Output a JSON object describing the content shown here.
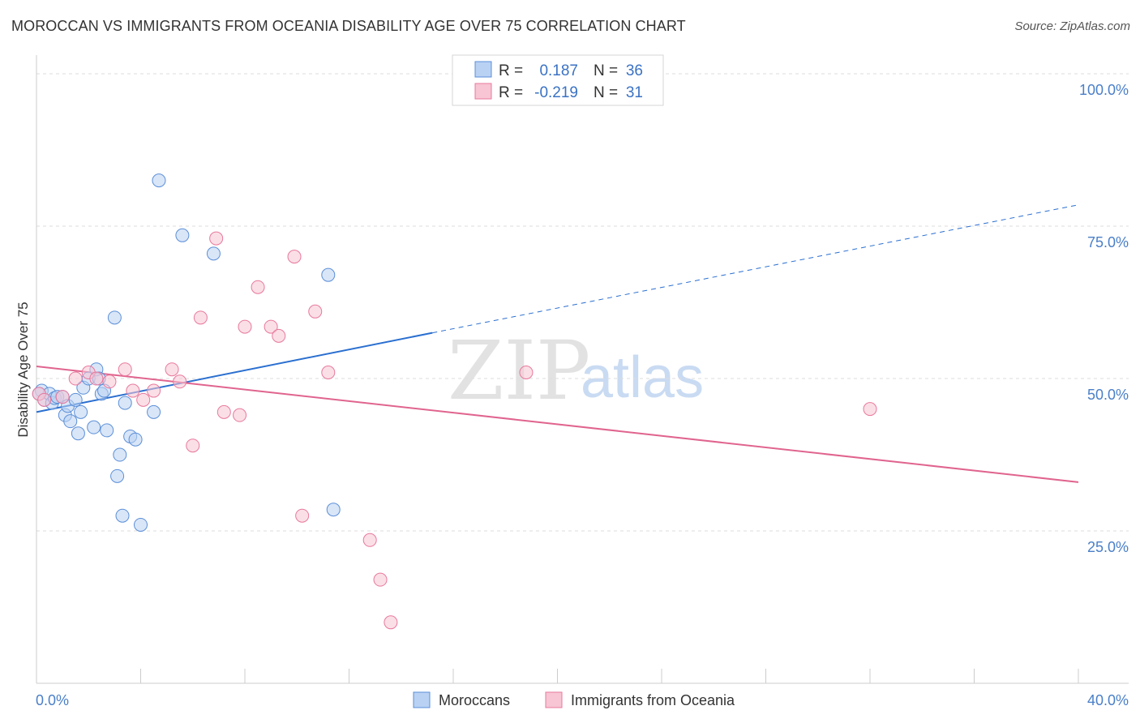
{
  "title": "MOROCCAN VS IMMIGRANTS FROM OCEANIA DISABILITY AGE OVER 75 CORRELATION CHART",
  "source": "Source: ZipAtlas.com",
  "watermark": {
    "zip": "ZIP",
    "atlas": "atlas"
  },
  "colors": {
    "blue": "#5b8fd8",
    "blue_fill": "#b9d1f3",
    "pink": "#e8799c",
    "pink_fill": "#f7c5d4",
    "blue_line": "#2a6fd0",
    "pink_line": "#e0648f"
  },
  "legend": {
    "r_label": "R =",
    "n_label": "N =",
    "items": [
      {
        "r": "0.187",
        "n": "36"
      },
      {
        "r": "-0.219",
        "n": "31"
      }
    ]
  },
  "bottom_legend": [
    "Moroccans",
    "Immigrants from Oceania"
  ],
  "chart_data": {
    "type": "scatter",
    "title": "MOROCCAN VS IMMIGRANTS FROM OCEANIA DISABILITY AGE OVER 75 CORRELATION CHART",
    "xlabel": "",
    "ylabel": "Disability Age Over 75",
    "x_tick_labels": [
      "0.0%",
      "40.0%"
    ],
    "y_tick_labels": [
      "100.0%",
      "75.0%",
      "50.0%",
      "25.0%"
    ],
    "y_ticks": [
      100,
      75,
      50,
      25
    ],
    "xlim": [
      0,
      40
    ],
    "ylim": [
      0,
      102
    ],
    "grid": true,
    "legend_position": "top-center",
    "series": [
      {
        "name": "Moroccans",
        "r": 0.187,
        "n": 36,
        "points": [
          [
            0.2,
            48.0
          ],
          [
            0.3,
            46.5
          ],
          [
            0.5,
            47.5
          ],
          [
            0.6,
            46.0
          ],
          [
            0.7,
            46.8
          ],
          [
            0.8,
            47.0
          ],
          [
            1.0,
            47.0
          ],
          [
            1.1,
            44.0
          ],
          [
            1.2,
            45.5
          ],
          [
            1.3,
            43.0
          ],
          [
            1.5,
            46.5
          ],
          [
            1.6,
            41.0
          ],
          [
            1.7,
            44.5
          ],
          [
            1.8,
            48.5
          ],
          [
            2.0,
            50.0
          ],
          [
            2.2,
            42.0
          ],
          [
            2.3,
            51.5
          ],
          [
            2.4,
            50.0
          ],
          [
            2.5,
            47.5
          ],
          [
            2.6,
            48.0
          ],
          [
            2.7,
            41.5
          ],
          [
            3.0,
            60.0
          ],
          [
            3.1,
            34.0
          ],
          [
            3.2,
            37.5
          ],
          [
            3.3,
            27.5
          ],
          [
            3.4,
            46.0
          ],
          [
            3.6,
            40.5
          ],
          [
            3.8,
            40.0
          ],
          [
            4.0,
            26.0
          ],
          [
            4.5,
            44.5
          ],
          [
            4.7,
            82.5
          ],
          [
            5.6,
            73.5
          ],
          [
            6.8,
            70.5
          ],
          [
            11.2,
            67.0
          ],
          [
            11.4,
            28.5
          ],
          [
            0.1,
            47.5
          ]
        ]
      },
      {
        "name": "Immigrants from Oceania",
        "r": -0.219,
        "n": 31,
        "points": [
          [
            0.1,
            47.5
          ],
          [
            0.3,
            46.5
          ],
          [
            1.0,
            47.0
          ],
          [
            1.5,
            50.0
          ],
          [
            2.0,
            51.0
          ],
          [
            2.3,
            50.0
          ],
          [
            2.8,
            49.5
          ],
          [
            3.4,
            51.5
          ],
          [
            3.7,
            48.0
          ],
          [
            4.1,
            46.5
          ],
          [
            4.5,
            48.0
          ],
          [
            5.2,
            51.5
          ],
          [
            5.5,
            49.5
          ],
          [
            6.0,
            39.0
          ],
          [
            6.3,
            60.0
          ],
          [
            6.9,
            73.0
          ],
          [
            7.2,
            44.5
          ],
          [
            7.8,
            44.0
          ],
          [
            8.0,
            58.5
          ],
          [
            8.5,
            65.0
          ],
          [
            9.0,
            58.5
          ],
          [
            9.3,
            57.0
          ],
          [
            9.9,
            70.0
          ],
          [
            10.2,
            27.5
          ],
          [
            10.7,
            61.0
          ],
          [
            11.2,
            51.0
          ],
          [
            12.8,
            23.5
          ],
          [
            13.2,
            17.0
          ],
          [
            13.6,
            10.0
          ],
          [
            18.8,
            51.0
          ],
          [
            32.0,
            45.0
          ]
        ]
      }
    ],
    "trend_lines": [
      {
        "series": "Moroccans",
        "solid": [
          [
            0,
            44.5
          ],
          [
            15.2,
            57.5
          ]
        ],
        "dashed_to": [
          40,
          78.5
        ]
      },
      {
        "series": "Immigrants from Oceania",
        "solid": [
          [
            0,
            52.0
          ],
          [
            40,
            33.0
          ]
        ]
      }
    ]
  }
}
